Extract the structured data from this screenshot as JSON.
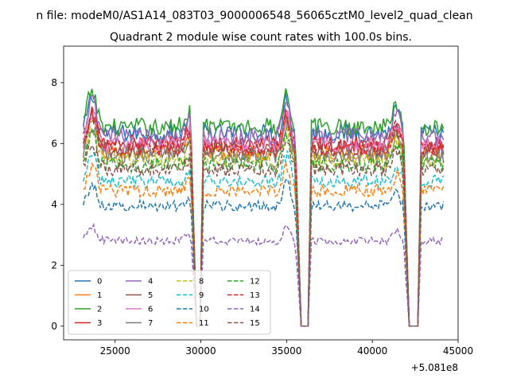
{
  "chart_data": {
    "type": "line",
    "suptitle": "n file: modeM0/AS1A14_083T03_9000006548_56065cztM0_level2_quad_clean",
    "title": "Quadrant 2 module wise count rates with 100.0s bins.",
    "xlabel": "",
    "ylabel": "",
    "offset_label": "+5.081e8",
    "xlim": [
      22000,
      45000
    ],
    "ylim": [
      -0.45,
      9.2
    ],
    "xticks": [
      25000,
      30000,
      35000,
      40000,
      45000
    ],
    "xtick_labels": [
      "25000",
      "30000",
      "35000",
      "40000",
      "45000"
    ],
    "yticks": [
      0,
      2,
      4,
      6,
      8
    ],
    "ytick_labels": [
      "0",
      "2",
      "4",
      "6",
      "8"
    ],
    "grid": false,
    "legend_location": "lower-left",
    "legend_columns": 4,
    "time_range": [
      23150,
      44150
    ],
    "bin_seconds": 100,
    "dropouts": [
      {
        "start": 29750,
        "end": 29950
      },
      {
        "start": 35850,
        "end": 36250
      },
      {
        "start": 42150,
        "end": 42650
      }
    ],
    "series": [
      {
        "name": "0",
        "baseline": 6.35,
        "color": "#1f77b4",
        "dash": "solid"
      },
      {
        "name": "1",
        "baseline": 5.7,
        "color": "#ff7f0e",
        "dash": "solid"
      },
      {
        "name": "2",
        "baseline": 6.55,
        "color": "#2ca02c",
        "dash": "solid"
      },
      {
        "name": "3",
        "baseline": 6.0,
        "color": "#d62728",
        "dash": "solid"
      },
      {
        "name": "4",
        "baseline": 6.25,
        "color": "#9467bd",
        "dash": "solid"
      },
      {
        "name": "5",
        "baseline": 5.8,
        "color": "#8c564b",
        "dash": "solid"
      },
      {
        "name": "6",
        "baseline": 5.95,
        "color": "#e377c2",
        "dash": "solid"
      },
      {
        "name": "7",
        "baseline": 5.6,
        "color": "#7f7f7f",
        "dash": "solid"
      },
      {
        "name": "8",
        "baseline": 5.45,
        "color": "#bcbd22",
        "dash": "dashed"
      },
      {
        "name": "9",
        "baseline": 4.75,
        "color": "#17becf",
        "dash": "dashed"
      },
      {
        "name": "10",
        "baseline": 3.95,
        "color": "#1f77b4",
        "dash": "dashed"
      },
      {
        "name": "11",
        "baseline": 4.45,
        "color": "#ff7f0e",
        "dash": "dashed"
      },
      {
        "name": "12",
        "baseline": 5.3,
        "color": "#2ca02c",
        "dash": "dashed"
      },
      {
        "name": "13",
        "baseline": 5.85,
        "color": "#d62728",
        "dash": "dashed"
      },
      {
        "name": "14",
        "baseline": 2.8,
        "color": "#9467bd",
        "dash": "dashed"
      },
      {
        "name": "15",
        "baseline": 5.15,
        "color": "#8c564b",
        "dash": "dashed"
      }
    ]
  }
}
